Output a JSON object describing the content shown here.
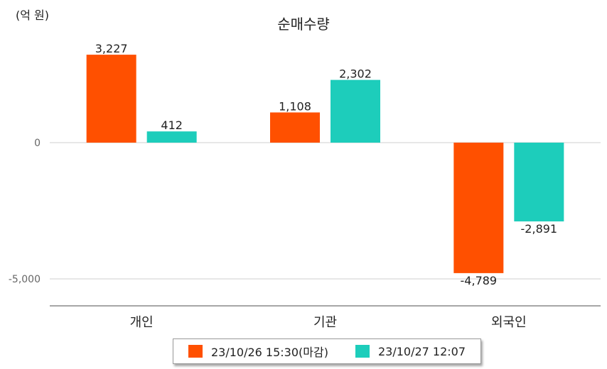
{
  "chart_data": {
    "type": "bar",
    "title": "순매수량",
    "unit_label": "(억 원)",
    "categories": [
      "개인",
      "기관",
      "외국인"
    ],
    "series": [
      {
        "name": "23/10/26 15:30(마감)",
        "color": "#ff5000",
        "values": [
          3227,
          1108,
          -4789
        ],
        "labels": [
          "3,227",
          "1,108",
          "-4,789"
        ]
      },
      {
        "name": "23/10/27 12:07",
        "color": "#1dcdbb",
        "values": [
          412,
          2302,
          -2891
        ],
        "labels": [
          "412",
          "2,302",
          "-2,891"
        ]
      }
    ],
    "y_ticks": [
      0,
      -5000
    ],
    "y_tick_labels": [
      "0",
      "-5,000"
    ],
    "ylim": [
      -6000,
      4000
    ],
    "grid": true,
    "legend_position": "bottom"
  }
}
